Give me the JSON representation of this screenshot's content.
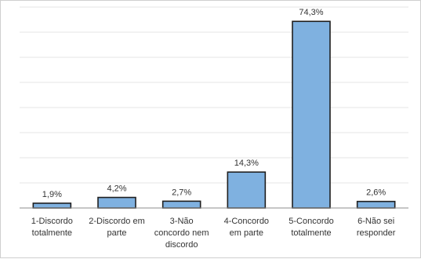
{
  "chart_data": {
    "type": "bar",
    "categories": [
      [
        "1-Discordo",
        "totalmente"
      ],
      [
        "2-Discordo em",
        "parte"
      ],
      [
        "3-Não",
        "concordo nem",
        "discordo"
      ],
      [
        "4-Concordo",
        "em parte"
      ],
      [
        "5-Concordo",
        "totalmente"
      ],
      [
        "6-Não sei",
        "responder"
      ]
    ],
    "values": [
      1.9,
      4.2,
      2.7,
      14.3,
      74.3,
      2.6
    ],
    "value_labels": [
      "1,9%",
      "4,2%",
      "2,7%",
      "14,3%",
      "74,3%",
      "2,6%"
    ],
    "ylim": [
      0,
      80
    ],
    "grid": true,
    "bar_color": "#7fb1e0",
    "bar_outline": "#1f1f1f"
  }
}
